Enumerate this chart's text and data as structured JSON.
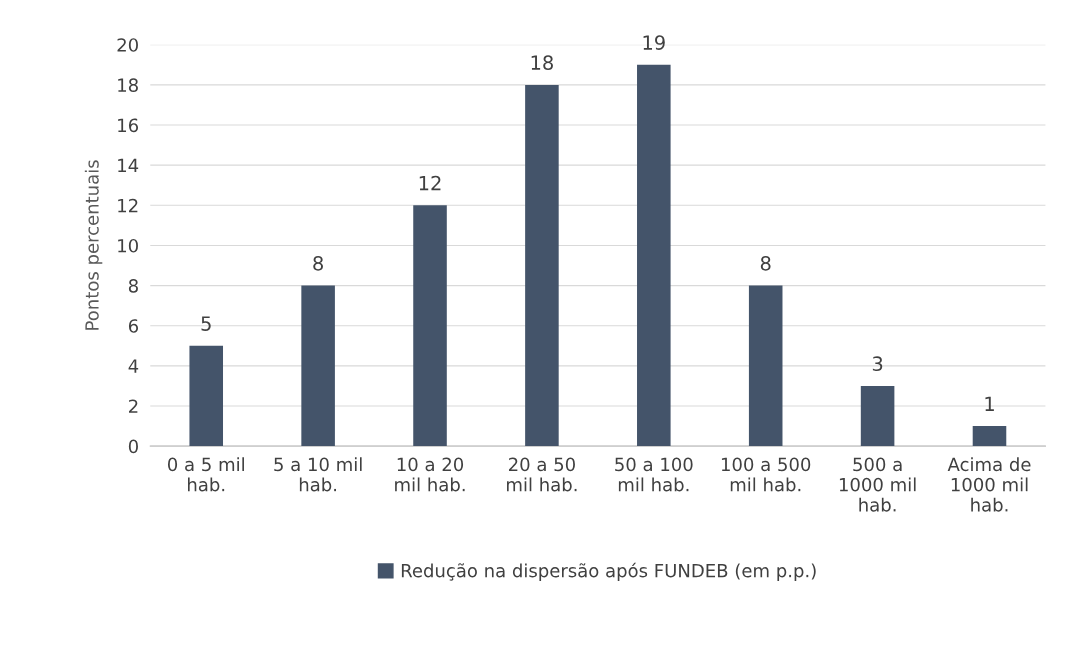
{
  "chart_data": {
    "type": "bar",
    "ylabel": "Pontos percentuais",
    "categories": [
      "0 a 5 mil\nhab.",
      "5 a 10 mil\nhab.",
      "10 a 20\nmil hab.",
      "20 a 50\nmil hab.",
      "50 a 100\nmil hab.",
      "100 a 500\nmil hab.",
      "500 a\n1000 mil\nhab.",
      "Acima de\n1000 mil\nhab."
    ],
    "series": [
      {
        "name": "Redução na dispersão após FUNDEB (em p.p.)",
        "color": "#44546a",
        "values": [
          5,
          8,
          12,
          18,
          19,
          8,
          3,
          1
        ]
      }
    ],
    "ylim": [
      0,
      20
    ],
    "yticks": [
      0,
      2,
      4,
      6,
      8,
      10,
      12,
      14,
      16,
      18,
      20
    ],
    "grid": "y",
    "legend": "bottom",
    "data_labels": true
  }
}
